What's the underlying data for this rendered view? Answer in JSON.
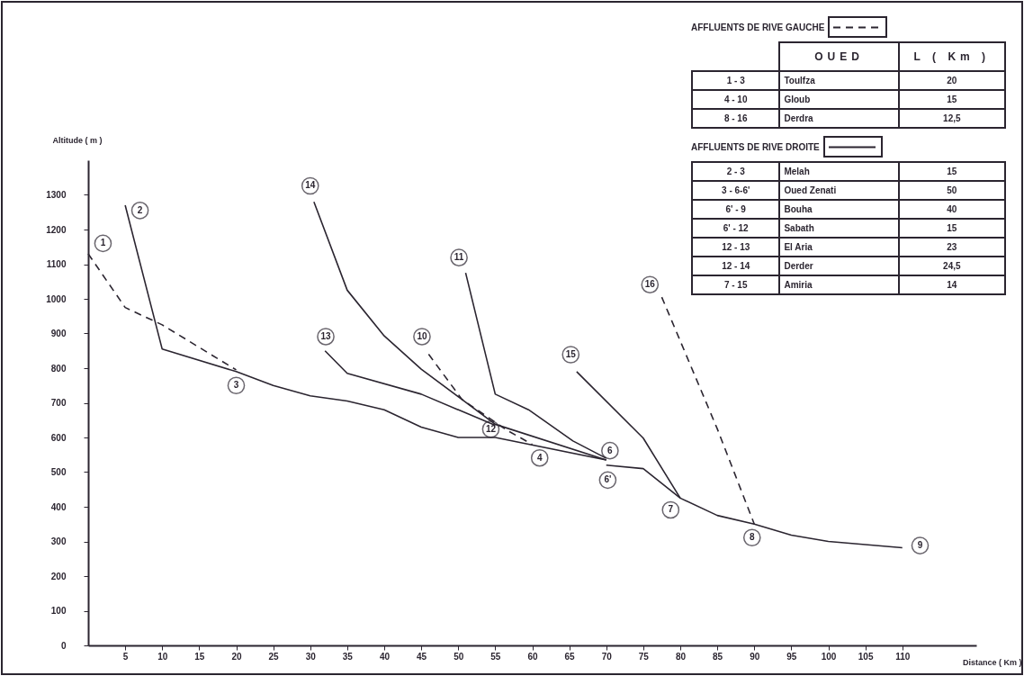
{
  "chart_data": {
    "type": "line",
    "xlabel": "Distance ( Km )",
    "ylabel": "Altitude ( m )",
    "xlim": [
      0,
      120
    ],
    "xticks": [
      5,
      10,
      15,
      20,
      25,
      30,
      35,
      40,
      45,
      50,
      55,
      60,
      65,
      70,
      75,
      80,
      85,
      90,
      95,
      100,
      105,
      110
    ],
    "ylim": [
      0,
      1400
    ],
    "yticks": [
      0,
      100,
      200,
      300,
      400,
      500,
      600,
      700,
      800,
      900,
      1000,
      1100,
      1200,
      1300
    ],
    "grid": false,
    "marker": "none",
    "series": [
      {
        "color": "#2b2530",
        "line_style": "dashed",
        "x": [
          0,
          5,
          10,
          20
        ],
        "values": [
          1130,
          975,
          925,
          795
        ]
      },
      {
        "color": "#2b2530",
        "line_style": "solid",
        "x": [
          5,
          10,
          20,
          25,
          30,
          35,
          40,
          45,
          50,
          55,
          70
        ],
        "values": [
          1270,
          855,
          790,
          750,
          720,
          705,
          680,
          630,
          600,
          600,
          535
        ]
      },
      {
        "color": "#2b2530",
        "line_style": "solid",
        "x": [
          70,
          75,
          80,
          85,
          90,
          95,
          100,
          110
        ],
        "values": [
          520,
          510,
          425,
          375,
          350,
          318,
          300,
          282
        ]
      },
      {
        "color": "#2b2530",
        "line_style": "solid",
        "x": [
          32,
          35,
          45,
          55
        ],
        "values": [
          850,
          785,
          725,
          635
        ]
      },
      {
        "color": "#2b2530",
        "line_style": "solid",
        "x": [
          30.5,
          35,
          40,
          45,
          55,
          70
        ],
        "values": [
          1280,
          1025,
          893,
          797,
          638,
          535
        ]
      },
      {
        "color": "#2b2530",
        "line_style": "solid",
        "x": [
          66,
          75,
          80
        ],
        "values": [
          790,
          598,
          425
        ]
      },
      {
        "color": "#2b2530",
        "line_style": "dashed",
        "x": [
          46,
          50.5,
          56.5,
          60
        ],
        "values": [
          840,
          710,
          622,
          580
        ]
      },
      {
        "color": "#2b2530",
        "line_style": "solid",
        "x": [
          51,
          55,
          59.5,
          65.5,
          70
        ],
        "values": [
          1075,
          725,
          680,
          590,
          540
        ]
      },
      {
        "color": "#2b2530",
        "line_style": "dashed",
        "x": [
          77.5,
          85,
          90
        ],
        "values": [
          1005,
          625,
          350
        ]
      }
    ],
    "annotations": [
      "AFFLUENTS DE RIVE GAUCHE",
      "OUED",
      "L ( Km )",
      "1 - 3",
      "Toulfza",
      "20",
      "4 - 10",
      "Gloub",
      "15",
      "8 - 16",
      "Derdra",
      "12,5",
      "AFFLUENTS DE RIVE DROITE",
      "2 - 3",
      "Melah",
      "15",
      "3 - 6-6'",
      "Oued Zenati",
      "50",
      "6' - 9",
      "Bouha",
      "40",
      "6' - 12",
      "Sabath",
      "15",
      "12 - 13",
      "El Aria",
      "23",
      "12 - 14",
      "Derder",
      "24,5",
      "7 - 15",
      "Amiria",
      "14",
      {
        "text": "1",
        "x": 2,
        "y": 1160
      },
      {
        "text": "2",
        "x": 7,
        "y": 1255
      },
      {
        "text": "3",
        "x": 20,
        "y": 750
      },
      {
        "text": "4",
        "x": 61,
        "y": 541
      },
      {
        "text": "6",
        "x": 70.5,
        "y": 562
      },
      {
        "text": "6'",
        "x": 70.2,
        "y": 477
      },
      {
        "text": "7",
        "x": 78.7,
        "y": 391
      },
      {
        "text": "8",
        "x": 89.7,
        "y": 311
      },
      {
        "text": "9",
        "x": 112.4,
        "y": 288
      },
      {
        "text": "10",
        "x": 45.1,
        "y": 891
      },
      {
        "text": "11",
        "x": 50.1,
        "y": 1119
      },
      {
        "text": "12",
        "x": 54.4,
        "y": 624
      },
      {
        "text": "13",
        "x": 32.1,
        "y": 891
      },
      {
        "text": "14",
        "x": 30,
        "y": 1326
      },
      {
        "text": "15",
        "x": 65.2,
        "y": 839
      },
      {
        "text": "16",
        "x": 75.9,
        "y": 1041
      }
    ]
  }
}
